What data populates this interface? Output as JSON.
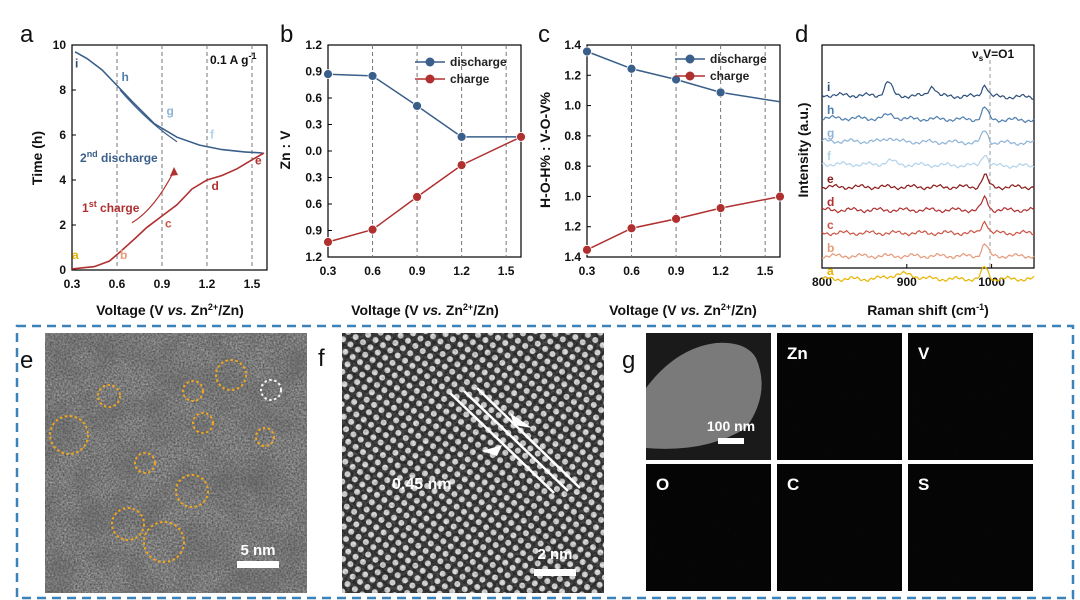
{
  "panels": {
    "a": {
      "label": "a"
    },
    "b": {
      "label": "b"
    },
    "c": {
      "label": "c"
    },
    "d": {
      "label": "d"
    },
    "e": {
      "label": "e",
      "scale": "5 nm"
    },
    "f": {
      "label": "f",
      "scale": "2 nm",
      "spacing": "0.45 nm"
    },
    "g": {
      "label": "g",
      "scale": "100 nm",
      "maps": [
        "Zn",
        "V",
        "O",
        "C",
        "S"
      ]
    }
  },
  "colors": {
    "blue": "#3a5f8a",
    "red": "#b03030",
    "frame": "#3b82b8"
  },
  "chart_data": [
    {
      "panel": "a",
      "type": "line",
      "xlabel_parts": [
        "Voltage (V ",
        "vs.",
        " Zn",
        "2+",
        "/Zn)"
      ],
      "ylabel": "Time (h)",
      "xlim": [
        0.3,
        1.6
      ],
      "ylim": [
        0,
        10
      ],
      "xticks": [
        "0.3",
        "0.6",
        "0.9",
        "1.2",
        "1.5"
      ],
      "yticks": [
        "0",
        "2",
        "4",
        "6",
        "8",
        "10"
      ],
      "current_parts": [
        "0.1 A g",
        "-1"
      ],
      "series": [
        {
          "name": "2nd discharge",
          "label_parts": [
            "2",
            "nd",
            " discharge"
          ],
          "color": "#3a5f8a",
          "x": [
            1.57,
            1.45,
            1.3,
            1.15,
            1.0,
            0.85,
            0.7,
            0.6,
            0.5,
            0.4,
            0.32
          ],
          "y": [
            5.2,
            5.25,
            5.35,
            5.55,
            5.9,
            6.5,
            7.5,
            8.2,
            8.9,
            9.4,
            9.7
          ]
        },
        {
          "name": "1st charge",
          "label_parts": [
            "1",
            "st",
            " charge"
          ],
          "color": "#b03030",
          "x": [
            0.3,
            0.45,
            0.55,
            0.62,
            0.72,
            0.8,
            0.9,
            1.0,
            1.1,
            1.2,
            1.3,
            1.4,
            1.5,
            1.58
          ],
          "y": [
            0.05,
            0.15,
            0.4,
            0.8,
            1.4,
            1.9,
            2.4,
            2.9,
            3.6,
            4.0,
            4.2,
            4.5,
            4.9,
            5.2
          ]
        }
      ],
      "points": [
        {
          "label": "a",
          "x": 0.3,
          "color": "#e8b400"
        },
        {
          "label": "b",
          "x": 0.6,
          "color": "#e69a7a"
        },
        {
          "label": "c",
          "x": 0.9,
          "color": "#cc5545"
        },
        {
          "label": "d",
          "x": 1.2,
          "color": "#b03030"
        },
        {
          "label": "e",
          "x": 1.5,
          "color": "#b03030"
        },
        {
          "label": "f",
          "x": 1.2,
          "color": "#b3d3ea"
        },
        {
          "label": "g",
          "x": 0.9,
          "color": "#8fb4d8"
        },
        {
          "label": "h",
          "x": 0.6,
          "color": "#4f7fae"
        },
        {
          "label": "i",
          "x": 0.3,
          "color": "#2d4f7c"
        }
      ]
    },
    {
      "panel": "b",
      "type": "line",
      "xlabel_parts": [
        "Voltage (V ",
        "vs.",
        " Zn",
        "2+",
        "/Zn)"
      ],
      "ylabel": "Zn : V",
      "xlim": [
        0.3,
        1.6
      ],
      "yticks": [
        "1.2",
        "0.9",
        "0.6",
        "0.3",
        "0.0",
        "0.3",
        "0.6",
        "0.9",
        "1.2"
      ],
      "xticks": [
        "0.3",
        "0.6",
        "0.9",
        "1.2",
        "1.5"
      ],
      "series": [
        {
          "name": "discharge",
          "color": "#3a5f8a",
          "x": [
            0.3,
            0.6,
            0.9,
            1.2,
            1.6
          ],
          "y": [
            0.87,
            0.85,
            0.51,
            0.16,
            0.16
          ]
        },
        {
          "name": "charge",
          "color": "#b03030",
          "x": [
            0.3,
            0.6,
            0.9,
            1.2,
            1.6
          ],
          "y": [
            -1.03,
            -0.89,
            -0.52,
            -0.16,
            0.16
          ]
        }
      ]
    },
    {
      "panel": "c",
      "type": "line",
      "xlabel_parts": [
        "Voltage (V ",
        "vs.",
        " Zn",
        "2+",
        "/Zn)"
      ],
      "ylabel": "H-O-H% : V-O-V%",
      "xlim": [
        0.3,
        1.6
      ],
      "yticks": [
        "1.4",
        "1.2",
        "1.0",
        "0.8",
        "0.8",
        "1.0",
        "1.2",
        "1.4"
      ],
      "xticks": [
        "0.3",
        "0.6",
        "0.9",
        "1.2",
        "1.5"
      ],
      "series": [
        {
          "name": "discharge",
          "color": "#3a5f8a",
          "x": [
            0.3,
            0.6,
            0.9,
            1.2,
            1.6
          ],
          "y": [
            1.36,
            1.12,
            0.97,
            0.79,
            0.66
          ]
        },
        {
          "name": "charge",
          "color": "#b03030",
          "x": [
            0.3,
            0.6,
            0.9,
            1.2,
            1.6
          ],
          "y": [
            -1.4,
            -1.1,
            -0.97,
            -0.82,
            -0.66
          ]
        }
      ]
    },
    {
      "panel": "d",
      "type": "line",
      "xlabel_parts": [
        "Raman shift (cm",
        "-1",
        ")"
      ],
      "ylabel": "Intensity (a.u.)",
      "xlim": [
        800,
        1050
      ],
      "xticks": [
        "800",
        "900",
        "1000"
      ],
      "peak_parts": [
        "ν",
        "s",
        "V=O1"
      ],
      "series": [
        {
          "name": "i",
          "color": "#2d4f7c"
        },
        {
          "name": "h",
          "color": "#4f7fae"
        },
        {
          "name": "g",
          "color": "#8fb4d8"
        },
        {
          "name": "f",
          "color": "#b3d3ea"
        },
        {
          "name": "e",
          "color": "#8b1a1a"
        },
        {
          "name": "d",
          "color": "#b03030"
        },
        {
          "name": "c",
          "color": "#cc5545"
        },
        {
          "name": "b",
          "color": "#e69a7a"
        },
        {
          "name": "a",
          "color": "#e8b400"
        }
      ]
    }
  ]
}
